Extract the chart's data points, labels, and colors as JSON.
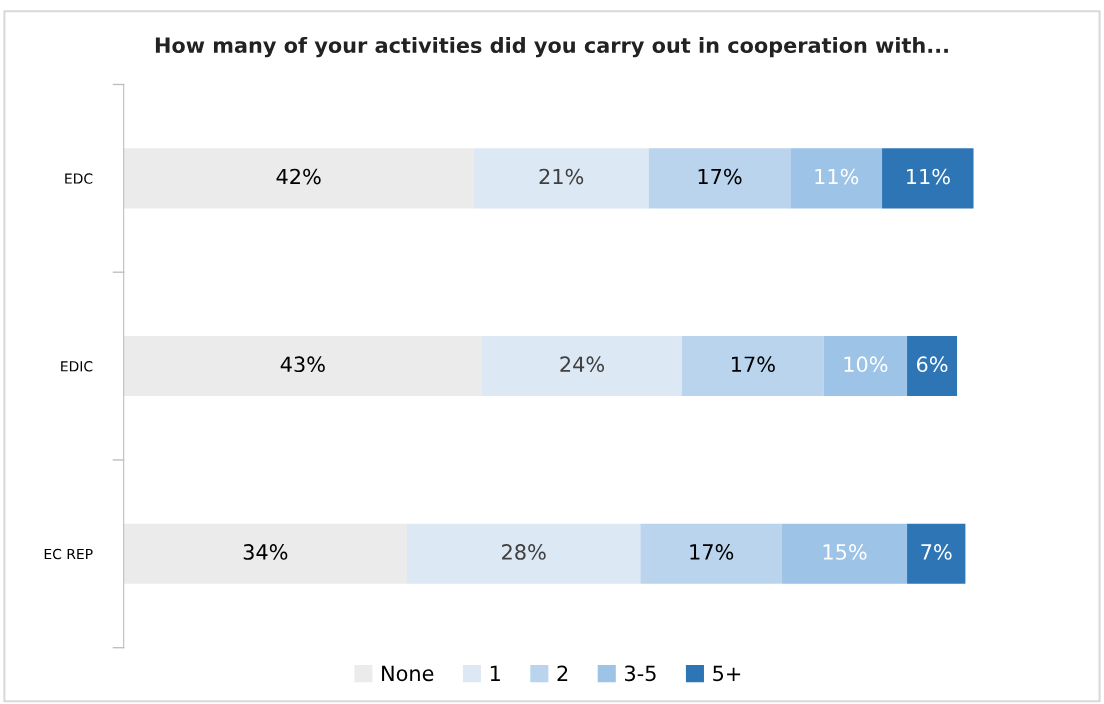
{
  "chart_data": {
    "type": "bar",
    "orientation": "horizontal",
    "stacked": true,
    "title": "How many of your activities did you carry out in cooperation with...",
    "categories": [
      "EDC",
      "EDIC",
      "EC REP"
    ],
    "series": [
      {
        "name": "None",
        "color": "#ebebeb",
        "values": [
          42,
          43,
          34
        ],
        "value_labels": [
          "42%",
          "43%",
          "34%"
        ]
      },
      {
        "name": "1",
        "color": "#dde8f5",
        "values": [
          21,
          24,
          28
        ],
        "value_labels": [
          "21%",
          "24%",
          "28%"
        ]
      },
      {
        "name": "2",
        "color": "#bad4ee",
        "values": [
          17,
          17,
          17
        ],
        "value_labels": [
          "17%",
          "17%",
          "17%"
        ]
      },
      {
        "name": "3-5",
        "color": "#9dc3e6",
        "values": [
          11,
          10,
          15
        ],
        "value_labels": [
          "11%",
          "10%",
          "15%"
        ]
      },
      {
        "name": "5+",
        "color": "#2e75b6",
        "values": [
          11,
          6,
          7
        ],
        "value_labels": [
          "11%",
          "6%",
          "7%"
        ]
      }
    ],
    "tick_labels": "y",
    "legend": "bottom"
  }
}
